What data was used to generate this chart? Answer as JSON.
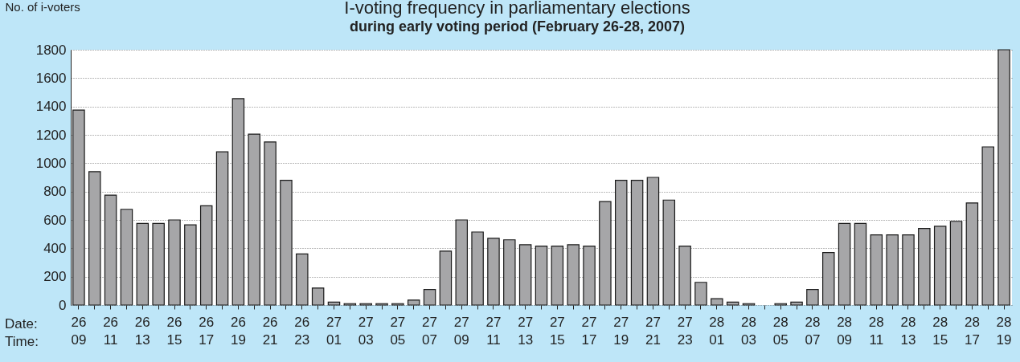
{
  "chart_data": {
    "type": "bar",
    "title": "I-voting frequency in parliamentary elections",
    "subtitle": "during early voting period (February 26-28, 2007)",
    "ylabel": "No. of i-voters",
    "categories": [
      "26\n09",
      null,
      "26\n11",
      null,
      "26\n13",
      null,
      "26\n15",
      null,
      "26\n17",
      null,
      "26\n19",
      null,
      "26\n21",
      null,
      "26\n23",
      null,
      "27\n01",
      null,
      "27\n03",
      null,
      "27\n05",
      null,
      "27\n07",
      null,
      "27\n09",
      null,
      "27\n11",
      null,
      "27\n13",
      null,
      "27\n15",
      null,
      "27\n17",
      null,
      "27\n19",
      null,
      "27\n21",
      null,
      "27\n23",
      null,
      "28\n01",
      null,
      "28\n03",
      null,
      "28\n05",
      null,
      "28\n07",
      null,
      "28\n09",
      null,
      "28\n11",
      null,
      "28\n13",
      null,
      "28\n15",
      null,
      "28\n17",
      null,
      "28\n19"
    ],
    "values": [
      1375,
      940,
      775,
      675,
      575,
      575,
      600,
      565,
      700,
      1080,
      1455,
      1205,
      1150,
      880,
      360,
      120,
      20,
      10,
      10,
      10,
      10,
      35,
      110,
      380,
      600,
      515,
      470,
      460,
      425,
      415,
      415,
      425,
      415,
      730,
      880,
      880,
      900,
      740,
      415,
      160,
      45,
      20,
      10,
      0,
      10,
      20,
      110,
      370,
      575,
      575,
      495,
      495,
      495,
      540,
      555,
      590,
      720,
      1115,
      1800
    ],
    "color": "#a6a6a8",
    "ylim": [
      0,
      1800
    ],
    "yticks": [
      0,
      200,
      400,
      600,
      800,
      1000,
      1200,
      1400,
      1600,
      1800
    ],
    "grid": "y",
    "annotations": [
      "Date:",
      "Time:"
    ]
  }
}
